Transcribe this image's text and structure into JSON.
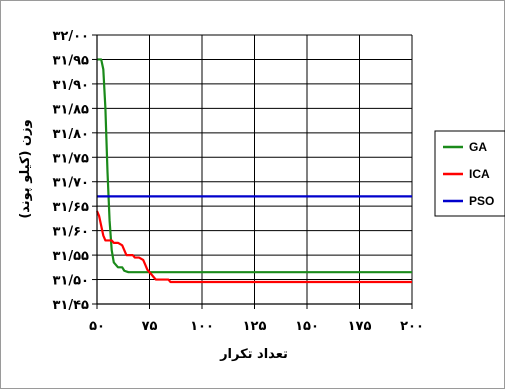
{
  "chart_data": {
    "type": "line",
    "xlabel": "تعداد تکرار",
    "ylabel": "وزن (کیلو پوند)",
    "xlim": [
      50,
      200
    ],
    "ylim": [
      31.45,
      32.0
    ],
    "x_ticks": [
      50,
      75,
      100,
      125,
      150,
      175,
      200
    ],
    "x_tick_labels": [
      "۵۰",
      "۷۵",
      "۱۰۰",
      "۱۲۵",
      "۱۵۰",
      "۱۷۵",
      "۲۰۰"
    ],
    "y_ticks": [
      31.45,
      31.5,
      31.55,
      31.6,
      31.65,
      31.7,
      31.75,
      31.8,
      31.85,
      31.9,
      31.95,
      32.0
    ],
    "y_tick_labels": [
      "۳۱/۴۵",
      "۳۱/۵۰",
      "۳۱/۵۵",
      "۳۱/۶۰",
      "۳۱/۶۵",
      "۳۱/۷۰",
      "۳۱/۷۵",
      "۳۱/۸۰",
      "۳۱/۸۵",
      "۳۱/۹۰",
      "۳۱/۹۵",
      "۳۲/۰۰"
    ],
    "grid": true,
    "legend_position": "right",
    "series": [
      {
        "name": "GA",
        "color": "#1a8a1a",
        "x": [
          50,
          52,
          53,
          54,
          55,
          56,
          57,
          58,
          60,
          62,
          63,
          65,
          70,
          200
        ],
        "y": [
          31.95,
          31.95,
          31.93,
          31.85,
          31.72,
          31.62,
          31.56,
          31.535,
          31.525,
          31.525,
          31.518,
          31.515,
          31.515,
          31.515
        ]
      },
      {
        "name": "ICA",
        "color": "#ff0000",
        "x": [
          50,
          51,
          52,
          53,
          54,
          57,
          58,
          60,
          62,
          63,
          64,
          67,
          68,
          70,
          72,
          73,
          74,
          76,
          77,
          78,
          84,
          85,
          200
        ],
        "y": [
          31.64,
          31.63,
          31.61,
          31.59,
          31.58,
          31.58,
          31.575,
          31.575,
          31.57,
          31.56,
          31.55,
          31.55,
          31.545,
          31.545,
          31.54,
          31.53,
          31.52,
          31.51,
          31.505,
          31.5,
          31.5,
          31.495,
          31.495
        ]
      },
      {
        "name": "PSO",
        "color": "#0000cc",
        "x": [
          50,
          200
        ],
        "y": [
          31.67,
          31.67
        ]
      }
    ]
  }
}
